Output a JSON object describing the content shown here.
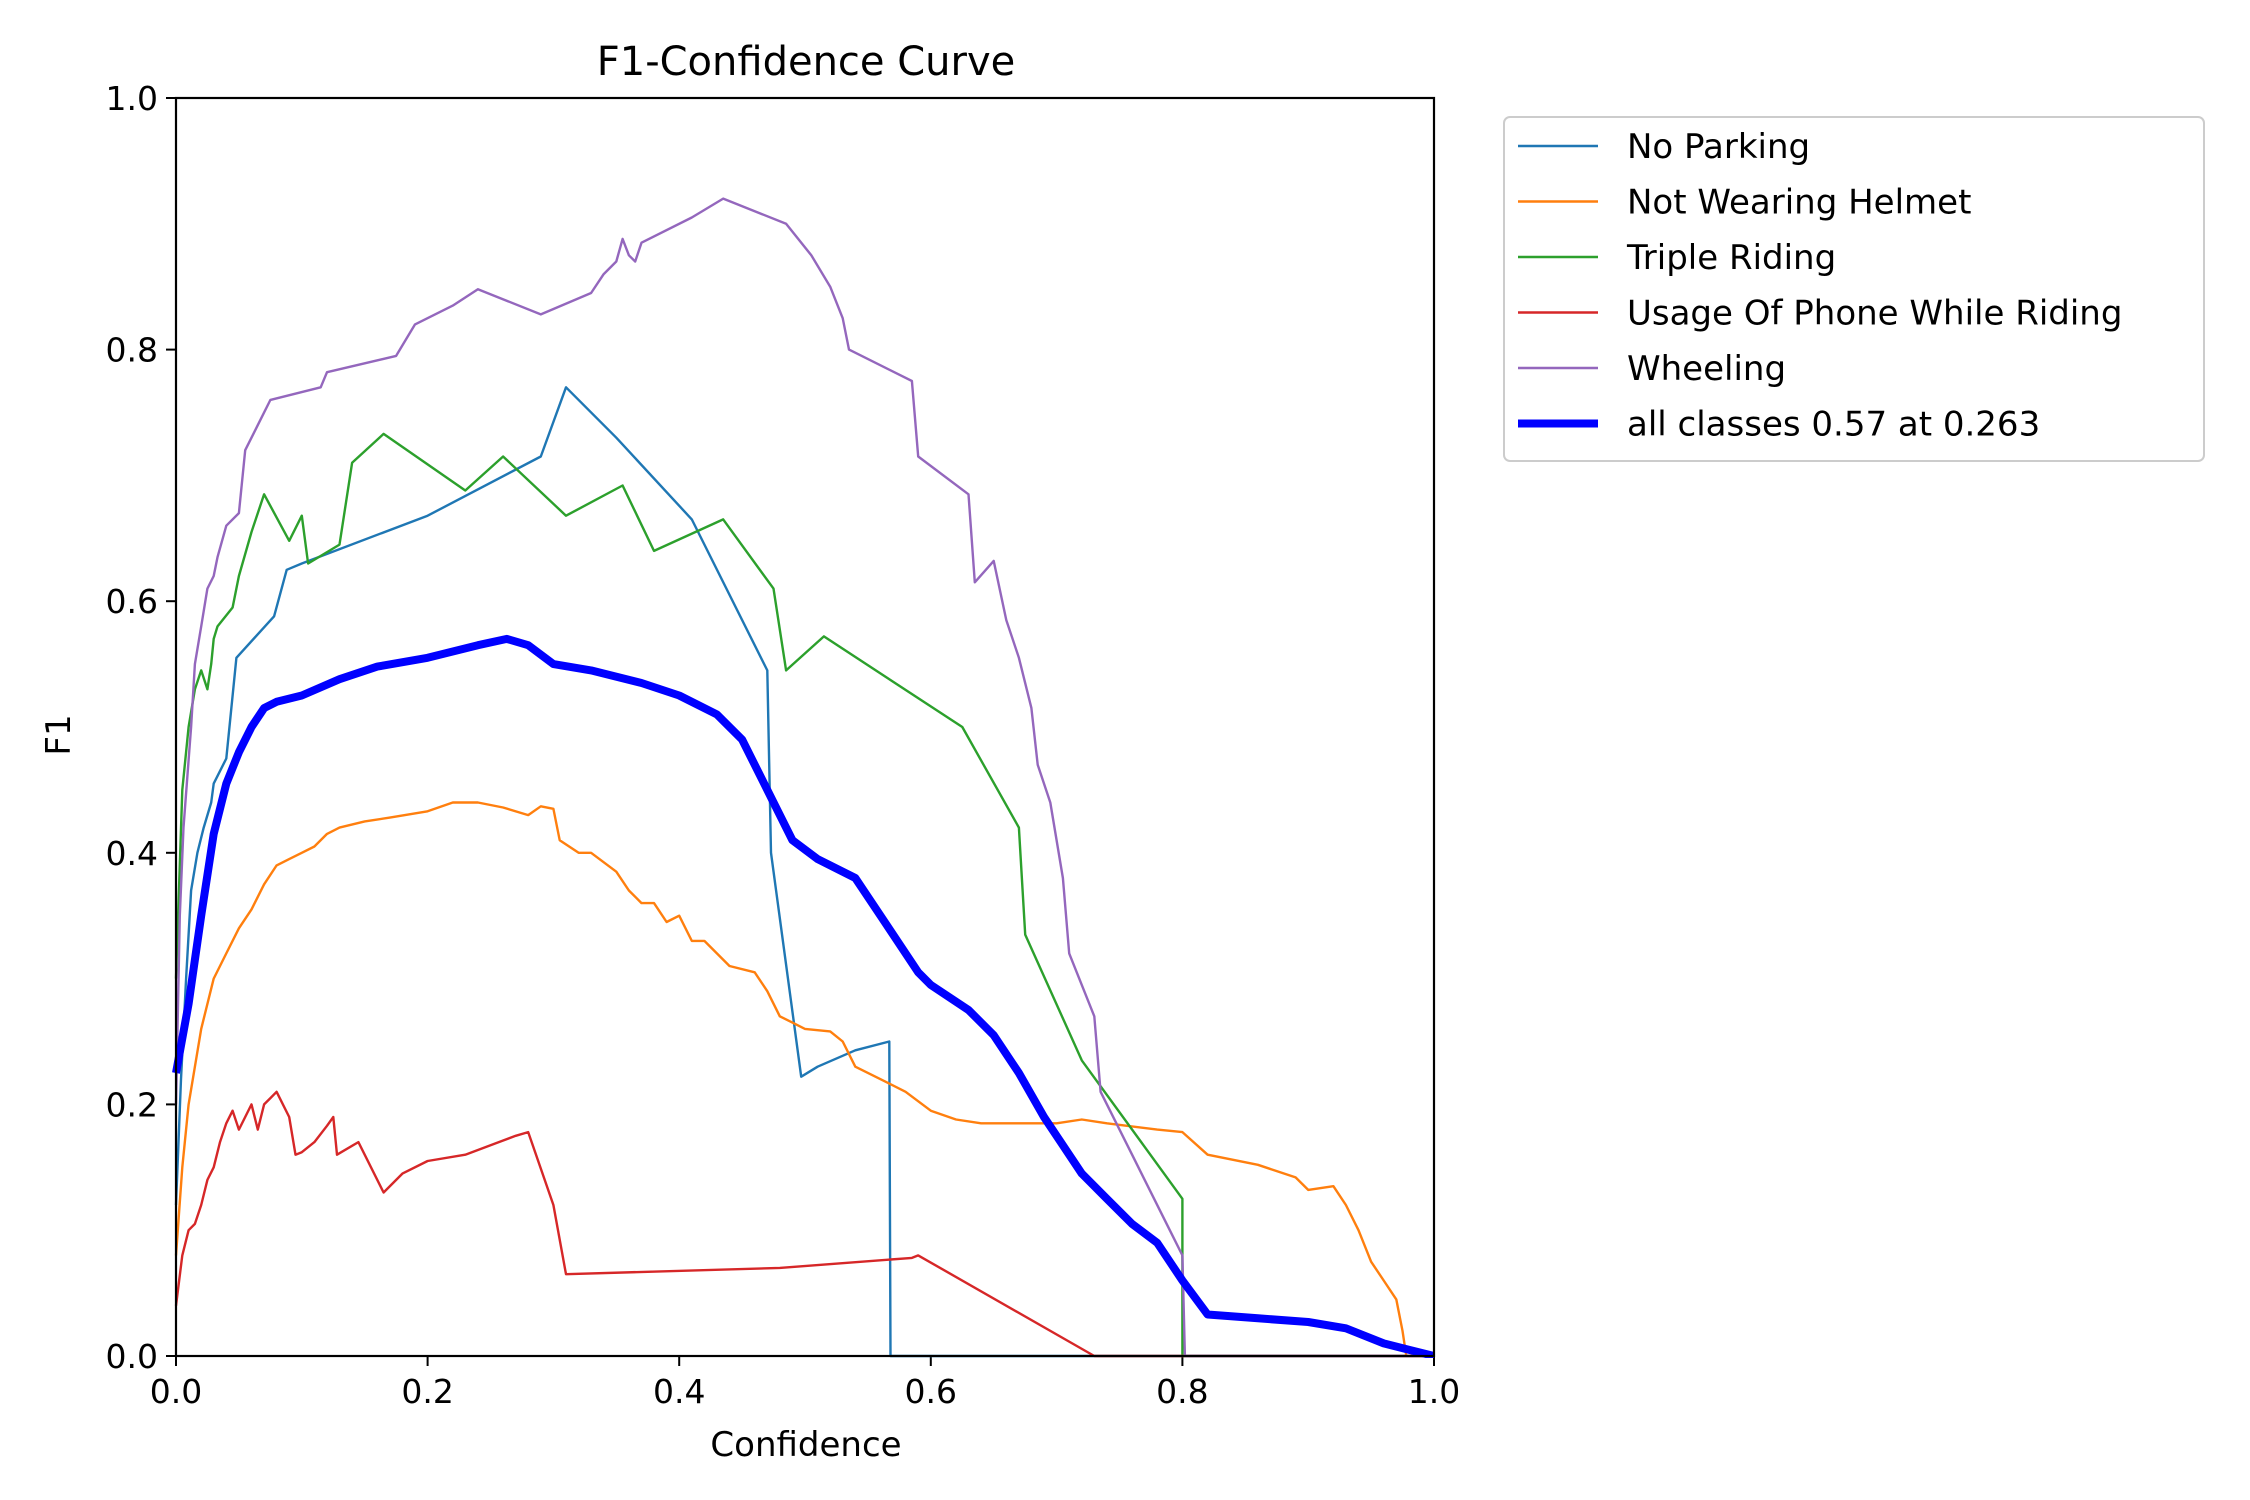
{
  "chart_data": {
    "type": "line",
    "title": "F1-Confidence Curve",
    "xlabel": "Confidence",
    "ylabel": "F1",
    "xlim": [
      0.0,
      1.0
    ],
    "ylim": [
      0.0,
      1.0
    ],
    "xticks": [
      "0.0",
      "0.2",
      "0.4",
      "0.6",
      "0.8",
      "1.0"
    ],
    "yticks": [
      "0.0",
      "0.2",
      "0.4",
      "0.6",
      "0.8",
      "1.0"
    ],
    "grid": false,
    "legend_position": "outside-top-right",
    "series": [
      {
        "name": "No Parking",
        "color": "#1f77b4",
        "points": [
          [
            0.0,
            0.12
          ],
          [
            0.004,
            0.22
          ],
          [
            0.008,
            0.3
          ],
          [
            0.012,
            0.37
          ],
          [
            0.017,
            0.4
          ],
          [
            0.022,
            0.42
          ],
          [
            0.028,
            0.44
          ],
          [
            0.03,
            0.455
          ],
          [
            0.04,
            0.475
          ],
          [
            0.048,
            0.555
          ],
          [
            0.078,
            0.588
          ],
          [
            0.088,
            0.625
          ],
          [
            0.1,
            0.63
          ],
          [
            0.2,
            0.668
          ],
          [
            0.29,
            0.715
          ],
          [
            0.31,
            0.77
          ],
          [
            0.35,
            0.73
          ],
          [
            0.41,
            0.665
          ],
          [
            0.47,
            0.545
          ],
          [
            0.473,
            0.4
          ],
          [
            0.497,
            0.222
          ],
          [
            0.51,
            0.23
          ],
          [
            0.54,
            0.243
          ],
          [
            0.567,
            0.25
          ],
          [
            0.568,
            0.0
          ],
          [
            0.79,
            0.0
          ],
          [
            0.8,
            0.0
          ],
          [
            1.0,
            0.0
          ]
        ]
      },
      {
        "name": "Not Wearing Helmet",
        "color": "#ff7f0e",
        "points": [
          [
            0.0,
            0.08
          ],
          [
            0.005,
            0.15
          ],
          [
            0.01,
            0.2
          ],
          [
            0.02,
            0.26
          ],
          [
            0.03,
            0.3
          ],
          [
            0.04,
            0.32
          ],
          [
            0.05,
            0.34
          ],
          [
            0.06,
            0.355
          ],
          [
            0.07,
            0.375
          ],
          [
            0.08,
            0.39
          ],
          [
            0.09,
            0.395
          ],
          [
            0.1,
            0.4
          ],
          [
            0.11,
            0.405
          ],
          [
            0.12,
            0.415
          ],
          [
            0.13,
            0.42
          ],
          [
            0.15,
            0.425
          ],
          [
            0.17,
            0.428
          ],
          [
            0.2,
            0.433
          ],
          [
            0.22,
            0.44
          ],
          [
            0.24,
            0.44
          ],
          [
            0.26,
            0.436
          ],
          [
            0.28,
            0.43
          ],
          [
            0.29,
            0.437
          ],
          [
            0.3,
            0.435
          ],
          [
            0.305,
            0.41
          ],
          [
            0.32,
            0.4
          ],
          [
            0.33,
            0.4
          ],
          [
            0.35,
            0.385
          ],
          [
            0.36,
            0.37
          ],
          [
            0.37,
            0.36
          ],
          [
            0.38,
            0.36
          ],
          [
            0.39,
            0.345
          ],
          [
            0.4,
            0.35
          ],
          [
            0.41,
            0.33
          ],
          [
            0.42,
            0.33
          ],
          [
            0.44,
            0.31
          ],
          [
            0.46,
            0.305
          ],
          [
            0.47,
            0.29
          ],
          [
            0.48,
            0.27
          ],
          [
            0.49,
            0.265
          ],
          [
            0.5,
            0.26
          ],
          [
            0.52,
            0.258
          ],
          [
            0.53,
            0.25
          ],
          [
            0.54,
            0.23
          ],
          [
            0.56,
            0.22
          ],
          [
            0.58,
            0.21
          ],
          [
            0.6,
            0.195
          ],
          [
            0.62,
            0.188
          ],
          [
            0.64,
            0.185
          ],
          [
            0.7,
            0.185
          ],
          [
            0.72,
            0.188
          ],
          [
            0.74,
            0.185
          ],
          [
            0.78,
            0.18
          ],
          [
            0.8,
            0.178
          ],
          [
            0.82,
            0.16
          ],
          [
            0.86,
            0.152
          ],
          [
            0.89,
            0.142
          ],
          [
            0.9,
            0.132
          ],
          [
            0.92,
            0.135
          ],
          [
            0.93,
            0.12
          ],
          [
            0.94,
            0.1
          ],
          [
            0.95,
            0.075
          ],
          [
            0.96,
            0.06
          ],
          [
            0.97,
            0.045
          ],
          [
            0.975,
            0.02
          ],
          [
            0.978,
            0.0
          ],
          [
            1.0,
            0.0
          ]
        ]
      },
      {
        "name": "Triple Riding",
        "color": "#2ca02c",
        "points": [
          [
            0.0,
            0.3
          ],
          [
            0.005,
            0.45
          ],
          [
            0.01,
            0.5
          ],
          [
            0.015,
            0.53
          ],
          [
            0.02,
            0.545
          ],
          [
            0.025,
            0.53
          ],
          [
            0.028,
            0.55
          ],
          [
            0.03,
            0.57
          ],
          [
            0.033,
            0.58
          ],
          [
            0.045,
            0.595
          ],
          [
            0.05,
            0.62
          ],
          [
            0.06,
            0.655
          ],
          [
            0.065,
            0.67
          ],
          [
            0.07,
            0.685
          ],
          [
            0.09,
            0.648
          ],
          [
            0.1,
            0.668
          ],
          [
            0.105,
            0.63
          ],
          [
            0.13,
            0.645
          ],
          [
            0.14,
            0.71
          ],
          [
            0.165,
            0.733
          ],
          [
            0.23,
            0.688
          ],
          [
            0.26,
            0.715
          ],
          [
            0.31,
            0.668
          ],
          [
            0.355,
            0.692
          ],
          [
            0.38,
            0.64
          ],
          [
            0.435,
            0.665
          ],
          [
            0.475,
            0.61
          ],
          [
            0.485,
            0.545
          ],
          [
            0.515,
            0.572
          ],
          [
            0.625,
            0.5
          ],
          [
            0.67,
            0.42
          ],
          [
            0.675,
            0.335
          ],
          [
            0.72,
            0.235
          ],
          [
            0.8,
            0.125
          ],
          [
            0.8,
            0.0
          ],
          [
            1.0,
            0.0
          ]
        ]
      },
      {
        "name": "Usage Of Phone While Riding",
        "color": "#d62728",
        "points": [
          [
            0.0,
            0.04
          ],
          [
            0.005,
            0.08
          ],
          [
            0.01,
            0.1
          ],
          [
            0.015,
            0.105
          ],
          [
            0.02,
            0.12
          ],
          [
            0.025,
            0.14
          ],
          [
            0.03,
            0.15
          ],
          [
            0.035,
            0.17
          ],
          [
            0.04,
            0.185
          ],
          [
            0.045,
            0.195
          ],
          [
            0.05,
            0.18
          ],
          [
            0.055,
            0.19
          ],
          [
            0.06,
            0.2
          ],
          [
            0.065,
            0.18
          ],
          [
            0.07,
            0.2
          ],
          [
            0.075,
            0.205
          ],
          [
            0.08,
            0.21
          ],
          [
            0.09,
            0.19
          ],
          [
            0.095,
            0.16
          ],
          [
            0.1,
            0.162
          ],
          [
            0.11,
            0.17
          ],
          [
            0.12,
            0.183
          ],
          [
            0.125,
            0.19
          ],
          [
            0.128,
            0.16
          ],
          [
            0.145,
            0.17
          ],
          [
            0.165,
            0.13
          ],
          [
            0.18,
            0.145
          ],
          [
            0.2,
            0.155
          ],
          [
            0.23,
            0.16
          ],
          [
            0.27,
            0.175
          ],
          [
            0.28,
            0.178
          ],
          [
            0.3,
            0.12
          ],
          [
            0.31,
            0.065
          ],
          [
            0.48,
            0.07
          ],
          [
            0.585,
            0.078
          ],
          [
            0.59,
            0.08
          ],
          [
            0.73,
            0.0
          ],
          [
            1.0,
            0.0
          ]
        ]
      },
      {
        "name": "Wheeling",
        "color": "#9467bd",
        "points": [
          [
            0.0,
            0.2
          ],
          [
            0.003,
            0.35
          ],
          [
            0.006,
            0.42
          ],
          [
            0.009,
            0.46
          ],
          [
            0.012,
            0.5
          ],
          [
            0.015,
            0.55
          ],
          [
            0.02,
            0.58
          ],
          [
            0.025,
            0.61
          ],
          [
            0.03,
            0.62
          ],
          [
            0.033,
            0.635
          ],
          [
            0.04,
            0.66
          ],
          [
            0.05,
            0.67
          ],
          [
            0.055,
            0.72
          ],
          [
            0.065,
            0.74
          ],
          [
            0.075,
            0.76
          ],
          [
            0.115,
            0.77
          ],
          [
            0.12,
            0.782
          ],
          [
            0.175,
            0.795
          ],
          [
            0.19,
            0.82
          ],
          [
            0.22,
            0.835
          ],
          [
            0.24,
            0.848
          ],
          [
            0.29,
            0.828
          ],
          [
            0.33,
            0.845
          ],
          [
            0.34,
            0.86
          ],
          [
            0.35,
            0.87
          ],
          [
            0.355,
            0.888
          ],
          [
            0.36,
            0.875
          ],
          [
            0.365,
            0.87
          ],
          [
            0.37,
            0.885
          ],
          [
            0.41,
            0.905
          ],
          [
            0.435,
            0.92
          ],
          [
            0.485,
            0.9
          ],
          [
            0.505,
            0.875
          ],
          [
            0.52,
            0.85
          ],
          [
            0.53,
            0.825
          ],
          [
            0.535,
            0.8
          ],
          [
            0.585,
            0.775
          ],
          [
            0.59,
            0.715
          ],
          [
            0.63,
            0.685
          ],
          [
            0.635,
            0.615
          ],
          [
            0.65,
            0.632
          ],
          [
            0.66,
            0.585
          ],
          [
            0.67,
            0.555
          ],
          [
            0.68,
            0.515
          ],
          [
            0.685,
            0.47
          ],
          [
            0.695,
            0.44
          ],
          [
            0.705,
            0.38
          ],
          [
            0.71,
            0.32
          ],
          [
            0.73,
            0.27
          ],
          [
            0.735,
            0.21
          ],
          [
            0.76,
            0.16
          ],
          [
            0.79,
            0.1
          ],
          [
            0.8,
            0.08
          ],
          [
            0.802,
            0.0
          ],
          [
            1.0,
            0.0
          ]
        ]
      },
      {
        "name": "all classes 0.57 at 0.263",
        "color": "#0000ff",
        "thick": true,
        "points": [
          [
            0.0,
            0.225
          ],
          [
            0.01,
            0.28
          ],
          [
            0.02,
            0.35
          ],
          [
            0.03,
            0.415
          ],
          [
            0.04,
            0.455
          ],
          [
            0.05,
            0.48
          ],
          [
            0.06,
            0.5
          ],
          [
            0.07,
            0.515
          ],
          [
            0.08,
            0.52
          ],
          [
            0.1,
            0.525
          ],
          [
            0.13,
            0.538
          ],
          [
            0.16,
            0.548
          ],
          [
            0.2,
            0.555
          ],
          [
            0.24,
            0.565
          ],
          [
            0.263,
            0.57
          ],
          [
            0.28,
            0.565
          ],
          [
            0.3,
            0.55
          ],
          [
            0.33,
            0.545
          ],
          [
            0.37,
            0.535
          ],
          [
            0.4,
            0.525
          ],
          [
            0.43,
            0.51
          ],
          [
            0.45,
            0.49
          ],
          [
            0.47,
            0.45
          ],
          [
            0.49,
            0.41
          ],
          [
            0.51,
            0.395
          ],
          [
            0.54,
            0.38
          ],
          [
            0.56,
            0.35
          ],
          [
            0.59,
            0.305
          ],
          [
            0.6,
            0.295
          ],
          [
            0.63,
            0.275
          ],
          [
            0.65,
            0.255
          ],
          [
            0.67,
            0.225
          ],
          [
            0.69,
            0.19
          ],
          [
            0.72,
            0.145
          ],
          [
            0.74,
            0.125
          ],
          [
            0.76,
            0.105
          ],
          [
            0.78,
            0.09
          ],
          [
            0.8,
            0.06
          ],
          [
            0.82,
            0.033
          ],
          [
            0.86,
            0.03
          ],
          [
            0.9,
            0.027
          ],
          [
            0.93,
            0.022
          ],
          [
            0.96,
            0.01
          ],
          [
            0.98,
            0.005
          ],
          [
            1.0,
            0.0
          ]
        ]
      }
    ]
  }
}
